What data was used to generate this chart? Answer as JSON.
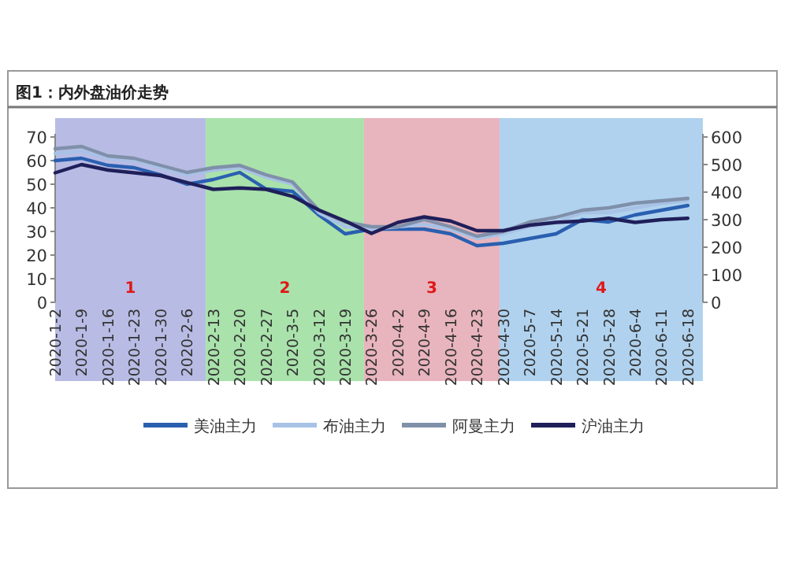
{
  "chart_data": {
    "type": "line",
    "title": "图1：内外盘油价走势",
    "x": [
      "2020-01-02",
      "2020-01-09",
      "2020-01-16",
      "2020-01-23",
      "2020-01-30",
      "2020-02-06",
      "2020-02-13",
      "2020-02-20",
      "2020-02-27",
      "2020-03-05",
      "2020-03-12",
      "2020-03-19",
      "2020-03-26",
      "2020-04-02",
      "2020-04-09",
      "2020-04-16",
      "2020-04-23",
      "2020-04-30",
      "2020-05-07",
      "2020-05-14",
      "2020-05-21",
      "2020-05-28",
      "2020-06-04",
      "2020-06-11",
      "2020-06-18"
    ],
    "xlim": [
      "2020-01-02",
      "2020-06-22"
    ],
    "xticks": [
      {
        "value": "2020-01-02",
        "label": "2020-1-2"
      },
      {
        "value": "2020-01-09",
        "label": "2020-1-9"
      },
      {
        "value": "2020-01-16",
        "label": "2020-1-16"
      },
      {
        "value": "2020-01-23",
        "label": "2020-1-23"
      },
      {
        "value": "2020-01-30",
        "label": "2020-1-30"
      },
      {
        "value": "2020-02-06",
        "label": "2020-2-6"
      },
      {
        "value": "2020-02-13",
        "label": "2020-2-13"
      },
      {
        "value": "2020-02-20",
        "label": "2020-2-20"
      },
      {
        "value": "2020-02-27",
        "label": "2020-2-27"
      },
      {
        "value": "2020-03-05",
        "label": "2020-3-5"
      },
      {
        "value": "2020-03-12",
        "label": "2020-3-12"
      },
      {
        "value": "2020-03-19",
        "label": "2020-3-19"
      },
      {
        "value": "2020-03-26",
        "label": "2020-3-26"
      },
      {
        "value": "2020-04-02",
        "label": "2020-4-2"
      },
      {
        "value": "2020-04-09",
        "label": "2020-4-9"
      },
      {
        "value": "2020-04-16",
        "label": "2020-4-16"
      },
      {
        "value": "2020-04-23",
        "label": "2020-4-23"
      },
      {
        "value": "2020-04-30",
        "label": "2020-4-30"
      },
      {
        "value": "2020-05-07",
        "label": "2020-5-7"
      },
      {
        "value": "2020-05-14",
        "label": "2020-5-14"
      },
      {
        "value": "2020-05-21",
        "label": "2020-5-21"
      },
      {
        "value": "2020-05-28",
        "label": "2020-5-28"
      },
      {
        "value": "2020-06-04",
        "label": "2020-6-4"
      },
      {
        "value": "2020-06-11",
        "label": "2020-6-11"
      },
      {
        "value": "2020-06-18",
        "label": "2020-6-18"
      }
    ],
    "ylim": [
      0,
      70
    ],
    "yticks": [
      0,
      10,
      20,
      30,
      40,
      50,
      60,
      70
    ],
    "y2lim": [
      0,
      600
    ],
    "y2ticks": [
      0,
      100,
      200,
      300,
      400,
      500,
      600
    ],
    "series": [
      {
        "name": "美油主力",
        "color": "#2a5fb0",
        "values": [
          60,
          61,
          58,
          57,
          54,
          50,
          52,
          55,
          48,
          47,
          37,
          29,
          31,
          31,
          31,
          29,
          24,
          25,
          27,
          29,
          35,
          34,
          37,
          39,
          41
        ]
      },
      {
        "name": "布油主力",
        "color": "#a8c2e6",
        "values": [
          63,
          64,
          61,
          60,
          57,
          54,
          56,
          57,
          53,
          50,
          38,
          32,
          31,
          32,
          33,
          31,
          27,
          29,
          32,
          34,
          38,
          38,
          40,
          42,
          43
        ]
      },
      {
        "name": "阿曼主力",
        "color": "#8090aa",
        "values": [
          65,
          66,
          62,
          61,
          58,
          55,
          57,
          58,
          54,
          51,
          39,
          34,
          32,
          32,
          35,
          32,
          28,
          30,
          34,
          36,
          39,
          40,
          42,
          43,
          44
        ]
      },
      {
        "name": "沪油主力",
        "color": "#1f1f5a",
        "axis": "y2",
        "values": [
          470,
          500,
          480,
          470,
          460,
          435,
          410,
          415,
          410,
          385,
          335,
          295,
          250,
          290,
          310,
          295,
          260,
          260,
          280,
          290,
          295,
          305,
          290,
          300,
          305
        ]
      }
    ],
    "bands": [
      {
        "axis": "x",
        "from": "2020-01-02",
        "to": "2020-02-11",
        "label": "1",
        "color": "#b8bce4"
      },
      {
        "axis": "x",
        "from": "2020-02-11",
        "to": "2020-03-24",
        "label": "2",
        "color": "#a9e2ab"
      },
      {
        "axis": "x",
        "from": "2020-03-24",
        "to": "2020-04-29",
        "label": "3",
        "color": "#e8b4bd"
      },
      {
        "axis": "x",
        "from": "2020-04-29",
        "to": "2020-06-22",
        "label": "4",
        "color": "#b0d2ee"
      }
    ],
    "legend": "bottom"
  }
}
